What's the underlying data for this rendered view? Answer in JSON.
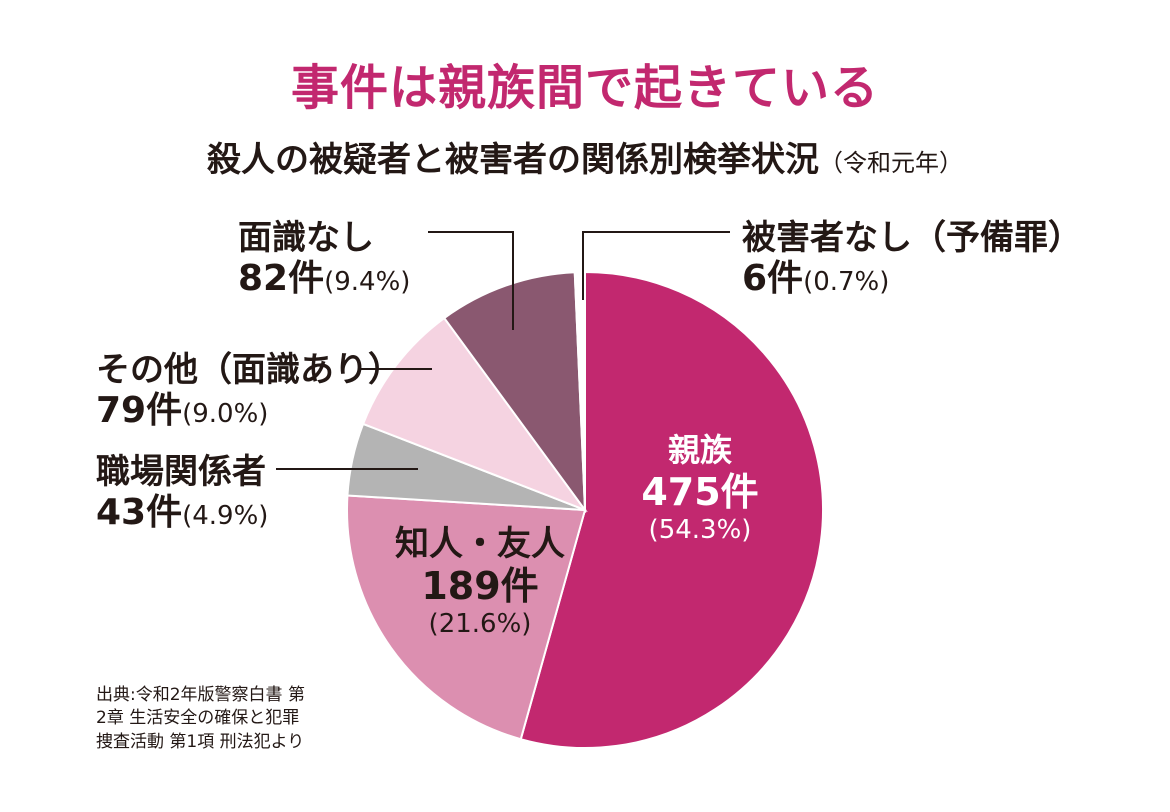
{
  "title": "事件は親族間で起きている",
  "subtitle": "殺人の被疑者と被害者の関係別検挙状況",
  "subtitle_note": "（令和元年）",
  "labels": {
    "shinzoku": {
      "name": "親族",
      "count": "475件",
      "pct": "(54.3%)"
    },
    "chijin": {
      "name": "知人・友人",
      "count": "189件",
      "pct": "(21.6%)"
    },
    "shokuba": {
      "name": "職場関係者",
      "count": "43件",
      "pct": "(4.9%)"
    },
    "sonota": {
      "name": "その他（面識あり）",
      "count": "79件",
      "pct": "(9.0%)"
    },
    "menshiki_nashi": {
      "name": "面識なし",
      "count": "82件",
      "pct": "(9.4%)"
    },
    "higaisha_nashi": {
      "name": "被害者なし（予備罪）",
      "count": "6件",
      "pct": "(0.7%)"
    }
  },
  "source": {
    "line1": "出典:令和2年版警察白書 第",
    "line2": "2章 生活安全の確保と犯罪",
    "line3": "捜査活動 第1項 刑法犯より"
  },
  "chart_data": {
    "type": "pie",
    "title": "事件は親族間で起きている",
    "subtitle": "殺人の被疑者と被害者の関係別検挙状況（令和元年）",
    "start": "12 o'clock, clockwise",
    "slices": [
      {
        "label": "親族",
        "value": 475,
        "percent": 54.3,
        "color": "#c2286f"
      },
      {
        "label": "知人・友人",
        "value": 189,
        "percent": 21.6,
        "color": "#dc8fb0"
      },
      {
        "label": "職場関係者",
        "value": 43,
        "percent": 4.9,
        "color": "#b4b4b4"
      },
      {
        "label": "その他（面識あり）",
        "value": 79,
        "percent": 9.0,
        "color": "#f5d3e1"
      },
      {
        "label": "面識なし",
        "value": 82,
        "percent": 9.4,
        "color": "#8a5870"
      },
      {
        "label": "被害者なし（予備罪）",
        "value": 6,
        "percent": 0.7,
        "color": "#ffffff"
      }
    ]
  }
}
